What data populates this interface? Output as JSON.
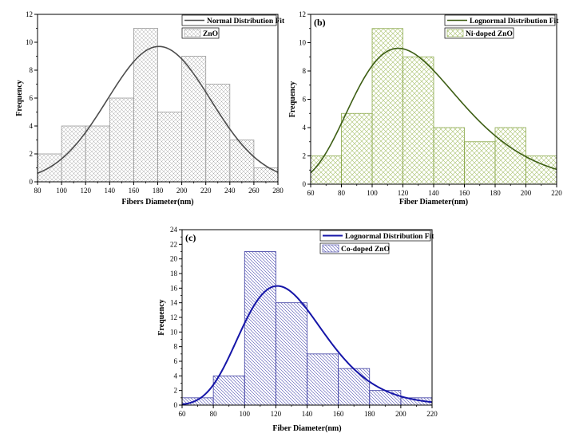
{
  "chart_data": [
    {
      "type": "bar",
      "panel_label": "",
      "xlabel": "Fibers Diameter(nm)",
      "ylabel": "Frequency",
      "xlim": [
        80,
        280
      ],
      "ylim": [
        0,
        12
      ],
      "xticks": [
        80,
        100,
        120,
        140,
        160,
        180,
        200,
        220,
        240,
        260,
        280
      ],
      "yticks": [
        0,
        2,
        4,
        6,
        8,
        10,
        12
      ],
      "bin_edges": [
        80,
        100,
        120,
        140,
        160,
        180,
        200,
        220,
        240,
        260,
        280
      ],
      "values": [
        2,
        4,
        4,
        6,
        11,
        5,
        9,
        7,
        3,
        1
      ],
      "fit": {
        "label": "Normal Distribution Fit",
        "kind": "normal",
        "mean": 181,
        "sd": 43,
        "peak": 9.7
      },
      "series": [
        {
          "name": "ZnO"
        }
      ],
      "legend_position": "top-right",
      "colors": {
        "bar_edge": "#9a9a9a",
        "hatch": "#aaaaaa",
        "fit_line": "#4d4d4d"
      }
    },
    {
      "type": "bar",
      "panel_label": "(b)",
      "xlabel": "Fiber Diameter(nm)",
      "ylabel": "Frequency",
      "xlim": [
        60,
        220
      ],
      "ylim": [
        0,
        12
      ],
      "xticks": [
        60,
        80,
        100,
        120,
        140,
        160,
        180,
        200,
        220
      ],
      "yticks": [
        0,
        2,
        4,
        6,
        8,
        10,
        12
      ],
      "bin_edges": [
        60,
        80,
        100,
        120,
        140,
        160,
        180,
        200,
        220
      ],
      "values": [
        2,
        5,
        11,
        9,
        4,
        3,
        4,
        2
      ],
      "fit": {
        "label": "Lognormal Distribution Fit",
        "kind": "lognormal",
        "mode": 117,
        "sigma": 0.3,
        "peak": 9.6
      },
      "series": [
        {
          "name": "Ni-doped ZnO"
        }
      ],
      "legend_position": "top-right",
      "colors": {
        "bar_edge": "#8aa84a",
        "hatch": "#a6c06a",
        "fit_line": "#3d5e14"
      }
    },
    {
      "type": "bar",
      "panel_label": "(c)",
      "xlabel": "Fiber Diameter(nm)",
      "ylabel": "Frequency",
      "xlim": [
        60,
        220
      ],
      "ylim": [
        0,
        24
      ],
      "xticks": [
        60,
        80,
        100,
        120,
        140,
        160,
        180,
        200,
        220
      ],
      "yticks": [
        0,
        2,
        4,
        6,
        8,
        10,
        12,
        14,
        16,
        18,
        20,
        22,
        24
      ],
      "bin_edges": [
        60,
        80,
        100,
        120,
        140,
        160,
        180,
        200,
        220
      ],
      "values": [
        1,
        4,
        21,
        14,
        7,
        5,
        2,
        1
      ],
      "fit": {
        "label": "Lognormal Distribution Fit",
        "kind": "lognormal",
        "mode": 121,
        "sigma": 0.22,
        "peak": 16.3
      },
      "series": [
        {
          "name": "Co-doped ZnO"
        }
      ],
      "legend_position": "top-right",
      "colors": {
        "bar_edge": "#3a3aa0",
        "hatch": "#4a4ab0",
        "fit_line": "#1515a8"
      }
    }
  ]
}
